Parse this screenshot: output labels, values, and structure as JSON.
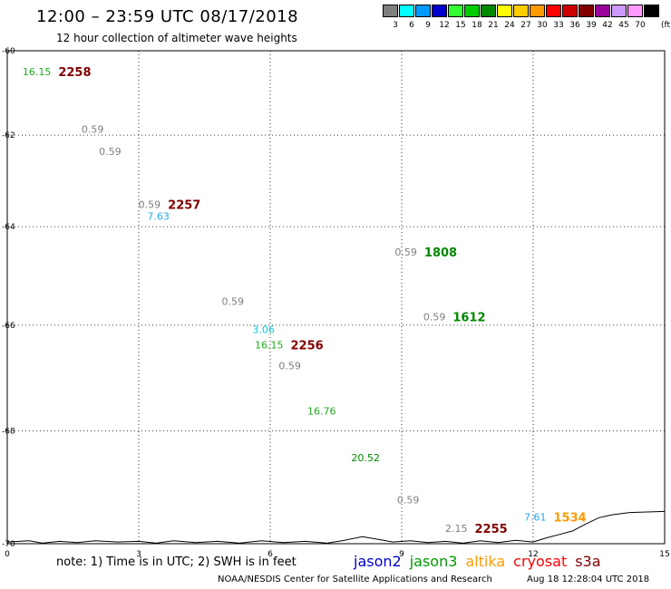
{
  "header": {
    "title": "12:00 – 23:59 UTC 08/17/2018",
    "subtitle": "12 hour collection of altimeter wave heights"
  },
  "legend": {
    "unit": "(ft)",
    "levels": [
      {
        "label": "3",
        "color": "#7f7f7f"
      },
      {
        "label": "6",
        "color": "#00ffff"
      },
      {
        "label": "9",
        "color": "#0099ff"
      },
      {
        "label": "12",
        "color": "#0000cc"
      },
      {
        "label": "15",
        "color": "#33ff33"
      },
      {
        "label": "18",
        "color": "#00cc00"
      },
      {
        "label": "21",
        "color": "#008800"
      },
      {
        "label": "24",
        "color": "#ffff00"
      },
      {
        "label": "27",
        "color": "#ffcc00"
      },
      {
        "label": "30",
        "color": "#ff9900"
      },
      {
        "label": "33",
        "color": "#ff0000"
      },
      {
        "label": "36",
        "color": "#cc0000"
      },
      {
        "label": "39",
        "color": "#800000"
      },
      {
        "label": "42",
        "color": "#990099"
      },
      {
        "label": "45",
        "color": "#cc99ff"
      },
      {
        "label": "70",
        "color": "#ff99ff"
      },
      {
        "label": "",
        "color": "#000000"
      }
    ]
  },
  "axes": {
    "lon_ticks": [
      {
        "value": 0,
        "label": "0"
      },
      {
        "value": 3,
        "label": "3"
      },
      {
        "value": 6,
        "label": "6"
      },
      {
        "value": 9,
        "label": "9"
      },
      {
        "value": 12,
        "label": "12"
      },
      {
        "value": 15,
        "label": "15"
      }
    ],
    "lat_ticks": [
      {
        "value": -60,
        "label": "-60"
      },
      {
        "value": -62,
        "label": "-62"
      },
      {
        "value": -64,
        "label": "-64"
      },
      {
        "value": -66,
        "label": "-66"
      },
      {
        "value": -68,
        "label": "-68"
      },
      {
        "value": -70,
        "label": "-70"
      }
    ],
    "lon_range": [
      0,
      15
    ],
    "lat_range": [
      -70,
      -60
    ]
  },
  "observations": [
    {
      "lon": 1.0,
      "lat": -60.6,
      "swh": "16.15",
      "swh_color": "#22aa22",
      "time": "2258",
      "time_color": "#800000"
    },
    {
      "lon": 2.2,
      "lat": -61.95,
      "swh": "0.59",
      "swh_color": "#7f7f7f"
    },
    {
      "lon": 2.6,
      "lat": -62.45,
      "swh": "0.59",
      "swh_color": "#7f7f7f"
    },
    {
      "lon": 3.5,
      "lat": -63.6,
      "swh": "0.59",
      "swh_color": "#7f7f7f",
      "time": "2257",
      "time_color": "#800000"
    },
    {
      "lon": 3.7,
      "lat": -63.85,
      "swh": "7.63",
      "swh_color": "#22aaee"
    },
    {
      "lon": 5.4,
      "lat": -65.6,
      "swh": "0.59",
      "swh_color": "#7f7f7f"
    },
    {
      "lon": 6.1,
      "lat": -66.15,
      "swh": "3.06",
      "swh_color": "#00ccdd"
    },
    {
      "lon": 6.3,
      "lat": -66.45,
      "swh": "16.15",
      "swh_color": "#22aa22",
      "time": "2256",
      "time_color": "#800000"
    },
    {
      "lon": 6.7,
      "lat": -66.85,
      "swh": "0.59",
      "swh_color": "#7f7f7f"
    },
    {
      "lon": 7.5,
      "lat": -67.7,
      "swh": "16.76",
      "swh_color": "#22aa22"
    },
    {
      "lon": 8.5,
      "lat": -68.55,
      "swh": "20.52",
      "swh_color": "#008800"
    },
    {
      "lon": 9.4,
      "lat": -69.3,
      "swh": "0.59",
      "swh_color": "#7f7f7f"
    },
    {
      "lon": 9.35,
      "lat": -64.6,
      "swh": "0.59",
      "swh_color": "#7f7f7f",
      "time": "1808",
      "time_color": "#008800"
    },
    {
      "lon": 10.0,
      "lat": -65.9,
      "swh": "0.59",
      "swh_color": "#7f7f7f",
      "time": "1612",
      "time_color": "#008800"
    },
    {
      "lon": 10.5,
      "lat": -69.8,
      "swh": "2.15",
      "swh_color": "#7f7f7f",
      "time": "2255",
      "time_color": "#800000"
    },
    {
      "lon": 12.3,
      "lat": -69.6,
      "swh": "7.61",
      "swh_color": "#22aaee",
      "time": "1534",
      "time_color": "#ff9900"
    }
  ],
  "coastline": [
    [
      0.0,
      -69.97
    ],
    [
      0.5,
      -69.95
    ],
    [
      0.8,
      -69.99
    ],
    [
      1.2,
      -69.96
    ],
    [
      1.6,
      -69.98
    ],
    [
      2.0,
      -69.95
    ],
    [
      2.5,
      -69.97
    ],
    [
      3.0,
      -69.96
    ],
    [
      3.4,
      -69.99
    ],
    [
      3.8,
      -69.95
    ],
    [
      4.3,
      -69.98
    ],
    [
      4.8,
      -69.96
    ],
    [
      5.3,
      -69.99
    ],
    [
      5.8,
      -69.95
    ],
    [
      6.3,
      -69.98
    ],
    [
      6.8,
      -69.96
    ],
    [
      7.3,
      -69.99
    ],
    [
      7.7,
      -69.94
    ],
    [
      8.1,
      -69.88
    ],
    [
      8.5,
      -69.93
    ],
    [
      8.8,
      -69.97
    ],
    [
      9.2,
      -69.95
    ],
    [
      9.6,
      -69.98
    ],
    [
      10.0,
      -69.96
    ],
    [
      10.4,
      -69.99
    ],
    [
      10.8,
      -69.95
    ],
    [
      11.2,
      -69.98
    ],
    [
      11.6,
      -69.94
    ],
    [
      12.0,
      -69.97
    ],
    [
      12.3,
      -69.9
    ],
    [
      12.6,
      -69.84
    ],
    [
      12.9,
      -69.78
    ],
    [
      13.2,
      -69.66
    ],
    [
      13.5,
      -69.55
    ],
    [
      13.8,
      -69.5
    ],
    [
      14.2,
      -69.46
    ],
    [
      14.6,
      -69.45
    ],
    [
      15.0,
      -69.44
    ]
  ],
  "footer": {
    "note": "note: 1) Time is in UTC; 2) SWH is in feet",
    "satellites": [
      {
        "name": "jason2",
        "color": "#0000cc"
      },
      {
        "name": "jason3",
        "color": "#009900"
      },
      {
        "name": "altika",
        "color": "#ff9900"
      },
      {
        "name": "cryosat",
        "color": "#ff0000"
      },
      {
        "name": "s3a",
        "color": "#800000"
      }
    ],
    "credit": "NOAA/NESDIS Center for Satellite Applications and Research",
    "timestamp": "Aug 18 12:28:04 UTC 2018"
  }
}
